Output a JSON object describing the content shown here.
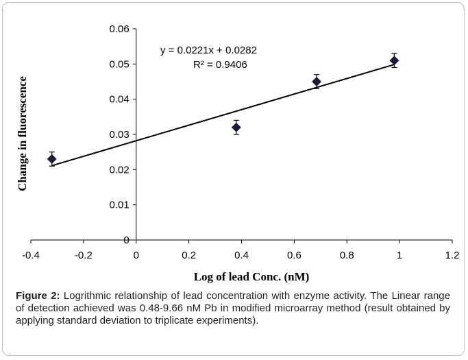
{
  "chart_data": {
    "type": "scatter",
    "xlabel": "Log  of lead Conc. (nM)",
    "ylabel": "Change in fluorescence",
    "xlim": [
      -0.4,
      1.2
    ],
    "ylim": [
      0,
      0.06
    ],
    "x_ticks": [
      "-0.4",
      "-0.2",
      "0",
      "0.2",
      "0.4",
      "0.6",
      "0.8",
      "1",
      "1.2"
    ],
    "y_ticks": [
      "0",
      "0.01",
      "0.02",
      "0.03",
      "0.04",
      "0.05",
      "0.06"
    ],
    "grid": false,
    "legend": "none",
    "marker_color": "#1a1a3a",
    "series": [
      {
        "points": [
          {
            "x": -0.32,
            "y": 0.023,
            "err": 0.002
          },
          {
            "x": 0.38,
            "y": 0.032,
            "err": 0.002
          },
          {
            "x": 0.685,
            "y": 0.045,
            "err": 0.002
          },
          {
            "x": 0.98,
            "y": 0.051,
            "err": 0.002
          }
        ]
      }
    ],
    "trendline": {
      "slope": 0.0221,
      "intercept": 0.0282,
      "equation": "y = 0.0221x + 0.0282",
      "r2": "R² = 0.9406"
    }
  },
  "caption": {
    "label": "Figure 2:",
    "text": "Logrithmic relationship of lead concentration with enzyme activity. The Linear range of detection achieved was 0.48-9.66 nM Pb in modified microarray method (result obtained by applying standard deviation to triplicate experiments)."
  }
}
